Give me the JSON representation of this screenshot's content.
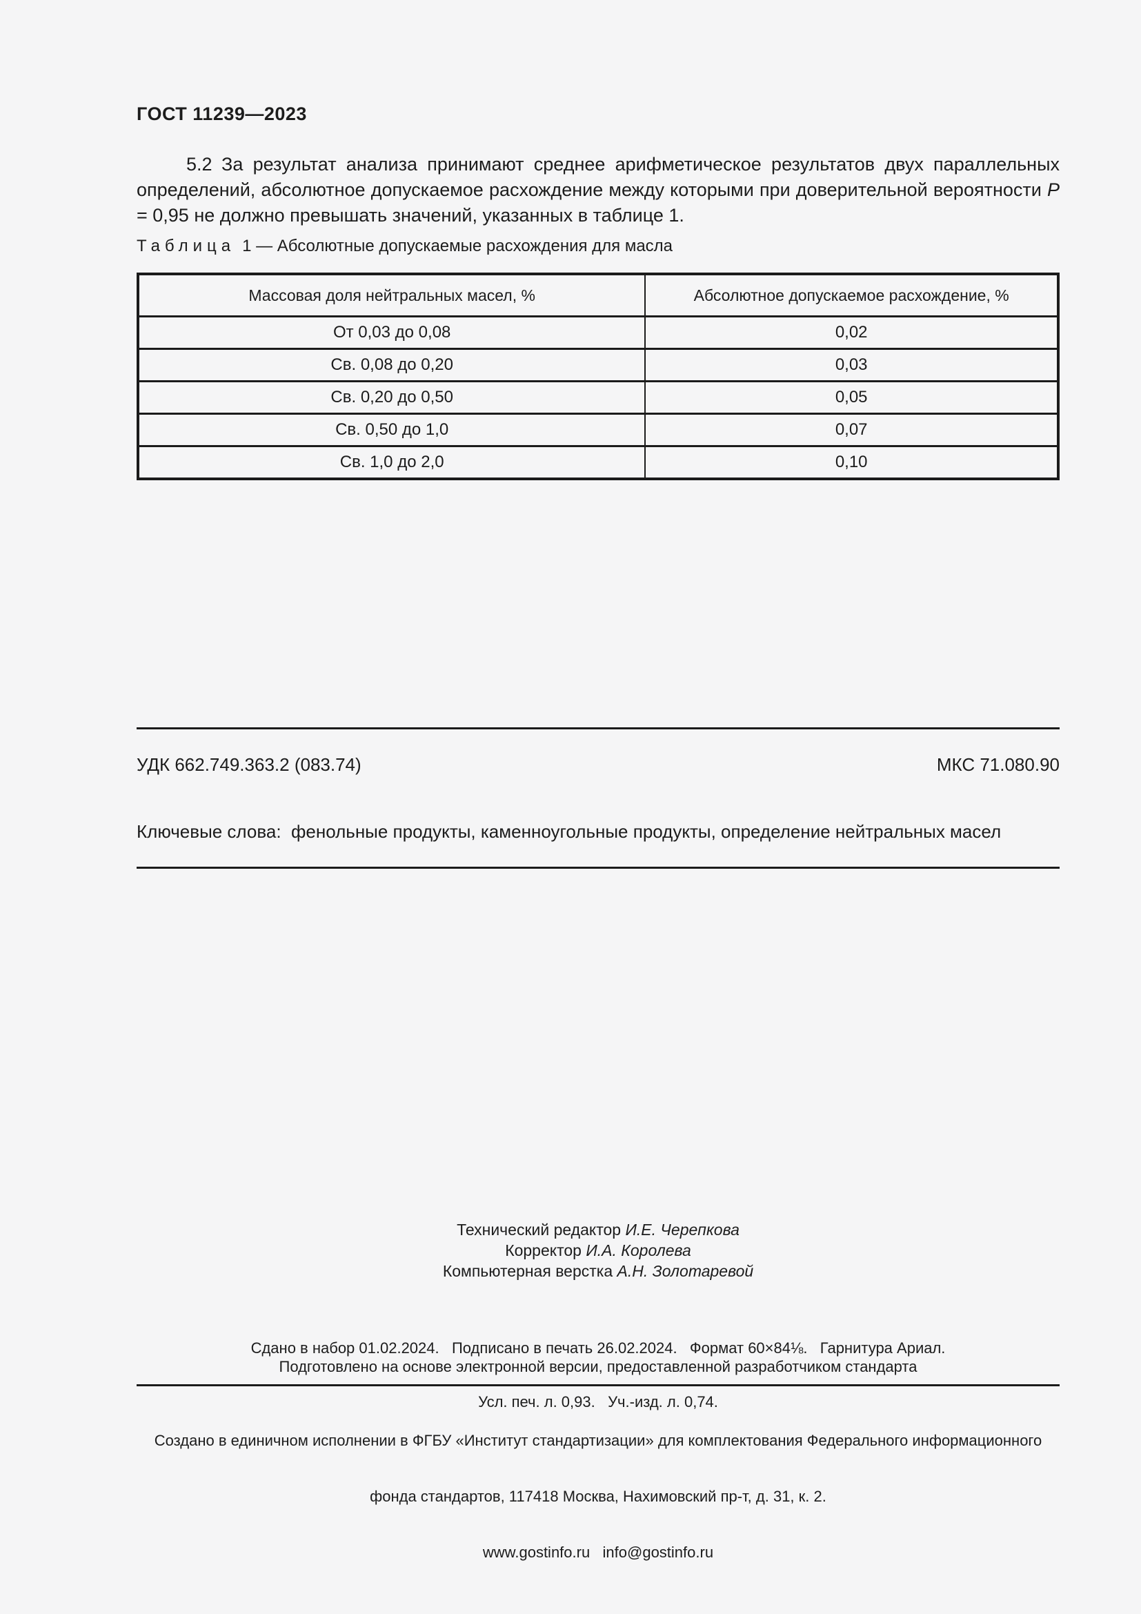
{
  "page": {
    "doc_number": "ГОСТ 11239—2023"
  },
  "section_5_2": {
    "text_before": "5.2 За результат анализа принимают среднее арифметическое результатов двух параллельных определений, абсолютное допускаемое расхождение между которыми при доверительной вероятности ",
    "variable": "Р",
    "text_after": " = 0,95 не должно превышать значений, указанных в таблице 1."
  },
  "table": {
    "caption_word": "Таблица",
    "caption_rest": "1 — Абсолютные допускаемые расхождения для масла",
    "col1_header": "Массовая доля нейтральных масел, %",
    "col2_header": "Абсолютное допускаемое расхождение, %",
    "rows": [
      {
        "range": "От 0,03 до 0,08",
        "value": "0,02"
      },
      {
        "range": "Св. 0,08 до 0,20",
        "value": "0,03"
      },
      {
        "range": "Св. 0,20 до 0,50",
        "value": "0,05"
      },
      {
        "range": "Св. 0,50 до 1,0",
        "value": "0,07"
      },
      {
        "range": "Св. 1,0 до 2,0",
        "value": "0,10"
      }
    ]
  },
  "codes": {
    "udk": "УДК 662.749.363.2 (083.74)",
    "mks": "МКС 71.080.90"
  },
  "keywords": "Ключевые слова:  фенольные продукты, каменноугольные продукты, определение нейтральных масел",
  "colophon": {
    "credits": [
      {
        "role": "Технический редактор ",
        "name": "И.Е. Черепкова"
      },
      {
        "role": "Корректор ",
        "name": "И.А. Королева"
      },
      {
        "role": "Компьютерная верстка ",
        "name": "А.Н. Золотаревой"
      }
    ],
    "imprint_line1": "Сдано в набор 01.02.2024.   Подписано в печать 26.02.2024.   Формат 60×84⅛.   Гарнитура Ариал.",
    "imprint_line2": "Усл. печ. л. 0,93.   Уч.-изд. л. 0,74.",
    "prepared": "Подготовлено на основе электронной версии, предоставленной разработчиком стандарта",
    "issued_line1": "Создано в единичном исполнении в ФГБУ «Институт стандартизации» для комплектования Федерального информационного",
    "issued_line2": "фонда стандартов, 117418 Москва, Нахимовский пр-т, д. 31, к. 2.",
    "contacts": "www.gostinfo.ru   info@gostinfo.ru"
  }
}
